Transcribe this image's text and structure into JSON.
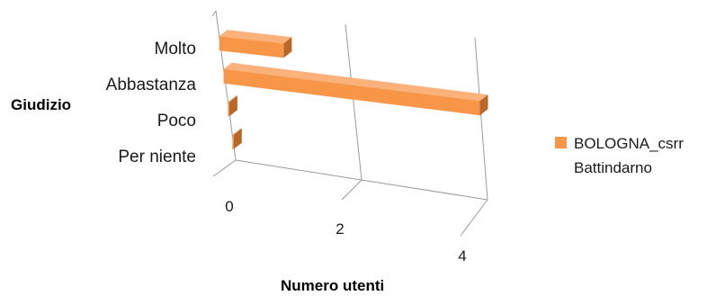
{
  "chart_data": {
    "type": "bar",
    "orientation": "horizontal",
    "style": "3d",
    "categories": [
      "Molto",
      "Abbastanza",
      "Poco",
      "Per niente"
    ],
    "series": [
      {
        "name": "BOLOGNA_csrr Battindarno",
        "values": [
          1,
          4,
          0,
          0
        ]
      }
    ],
    "title": "",
    "xlabel": "Numero utenti",
    "ylabel": "Giudizio",
    "xlim": [
      0,
      4
    ],
    "xticks": [
      0,
      2,
      4
    ],
    "grid": true,
    "legend_position": "right",
    "legend_lines": [
      "BOLOGNA_csrr",
      "Battindarno"
    ],
    "colors": {
      "bar_front": "#f79646",
      "bar_top": "#fab27a",
      "bar_side": "#b8692a",
      "grid": "#9a9a9a"
    }
  }
}
